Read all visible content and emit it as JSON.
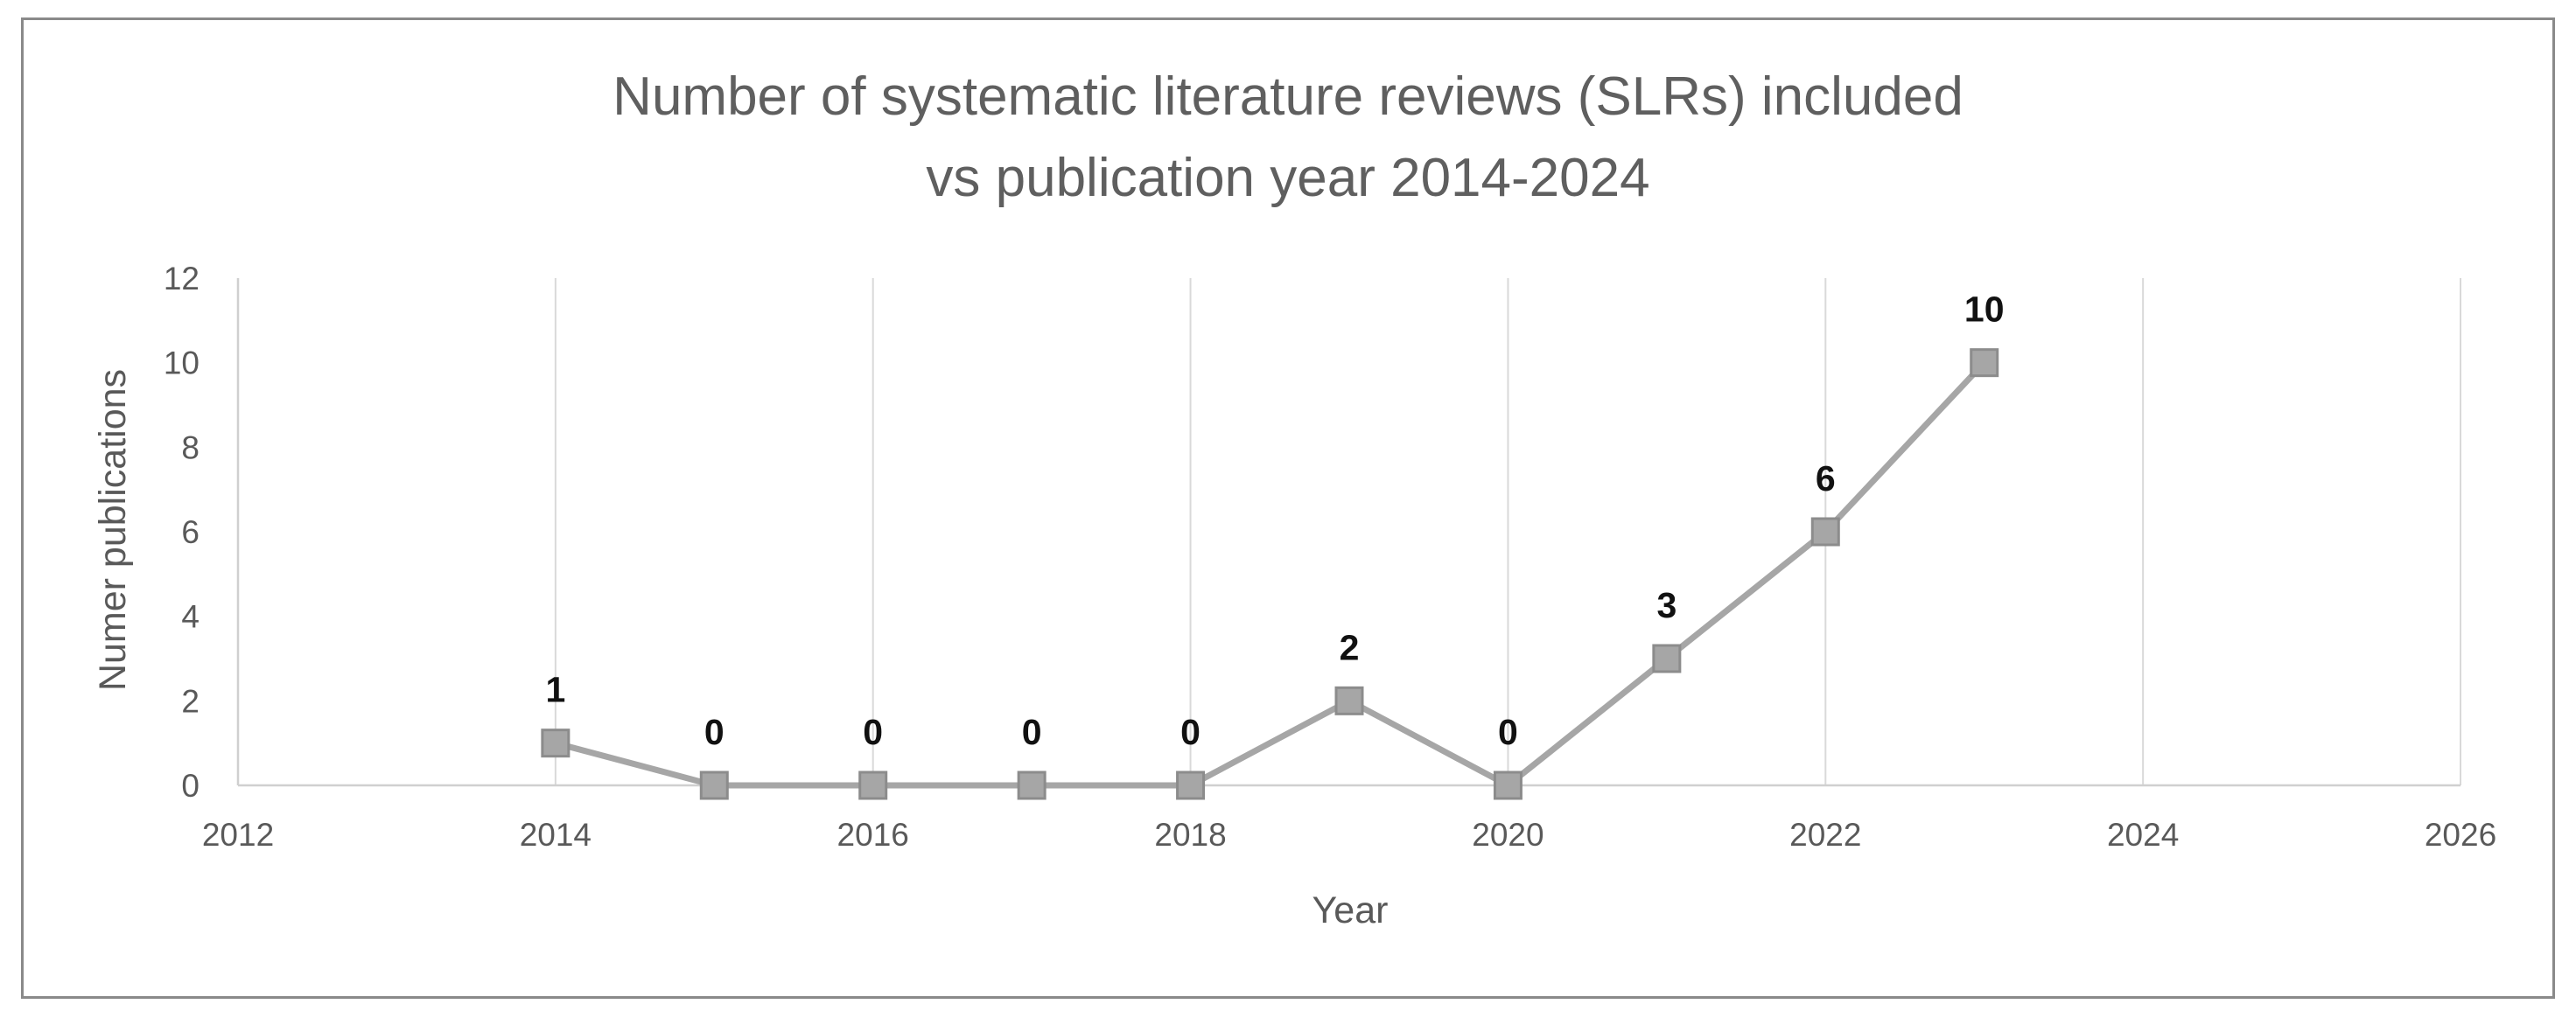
{
  "chart_data": {
    "type": "scatter",
    "title_lines": [
      "Number of systematic literature reviews (SLRs) included",
      "vs publication year 2014-2024"
    ],
    "xlabel": "Year",
    "ylabel": "Numer publications",
    "xlim": [
      2012,
      2026
    ],
    "ylim": [
      0,
      12
    ],
    "x_ticks": [
      2012,
      2014,
      2016,
      2018,
      2020,
      2022,
      2024,
      2026
    ],
    "y_ticks": [
      0,
      2,
      4,
      6,
      8,
      10,
      12
    ],
    "grid": "vertical",
    "series": [
      {
        "x": [
          2014,
          2015,
          2016,
          2017,
          2018,
          2019,
          2020,
          2021,
          2022,
          2023
        ],
        "y": [
          1,
          0,
          0,
          0,
          0,
          2,
          0,
          3,
          6,
          10
        ],
        "labels": [
          "1",
          "0",
          "0",
          "0",
          "0",
          "2",
          "0",
          "3",
          "6",
          "10"
        ],
        "line_color": "#a6a6a6",
        "marker": "square",
        "marker_color": "#a6a6a6",
        "marker_border": "#8c8c8c"
      }
    ]
  }
}
